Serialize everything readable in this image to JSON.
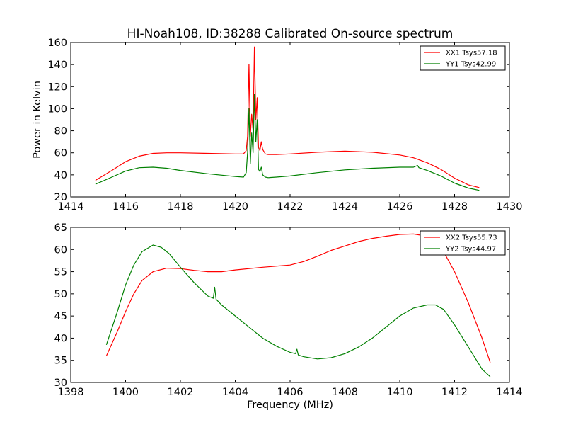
{
  "figure": {
    "title": "HI-Noah108, ID:38288 Calibrated On-source spectrum",
    "xlabel": "Frequency (MHz)"
  },
  "chart_data": [
    {
      "type": "line",
      "title": "HI-Noah108, ID:38288 Calibrated On-source spectrum",
      "xlabel": "",
      "ylabel": "Power in Kelvin",
      "xlim": [
        1414,
        1430
      ],
      "ylim": [
        20,
        160
      ],
      "xticks": [
        "1414",
        "1416",
        "1418",
        "1420",
        "1422",
        "1424",
        "1426",
        "1428",
        "1430"
      ],
      "yticks": [
        "20",
        "40",
        "60",
        "80",
        "100",
        "120",
        "140",
        "160"
      ],
      "legend_position": "top-right",
      "grid": false,
      "series": [
        {
          "name": "XX1 Tsys57.18",
          "color": "#ff0000",
          "x": [
            1414.9,
            1415.5,
            1416.0,
            1416.5,
            1417.0,
            1417.5,
            1418.0,
            1419.0,
            1420.0,
            1420.3,
            1420.4,
            1420.45,
            1420.5,
            1420.55,
            1420.6,
            1420.65,
            1420.7,
            1420.75,
            1420.8,
            1420.85,
            1420.9,
            1420.95,
            1421.0,
            1421.1,
            1421.2,
            1421.5,
            1422.0,
            1423.0,
            1424.0,
            1425.0,
            1426.0,
            1426.5,
            1427.0,
            1427.5,
            1428.0,
            1428.5,
            1428.9
          ],
          "y": [
            35,
            44,
            52,
            57,
            59.5,
            60,
            60,
            59.5,
            59,
            59,
            62,
            75,
            140,
            75,
            95,
            80,
            156,
            90,
            110,
            65,
            62,
            70,
            63,
            59,
            58.5,
            58.5,
            59,
            60.5,
            61.5,
            60.5,
            58,
            55.5,
            51,
            45,
            37,
            31,
            28.5
          ]
        },
        {
          "name": "YY1 Tsys42.99",
          "color": "#008000",
          "x": [
            1414.9,
            1415.5,
            1416.0,
            1416.5,
            1417.0,
            1417.5,
            1418.0,
            1419.0,
            1420.0,
            1420.3,
            1420.4,
            1420.45,
            1420.5,
            1420.55,
            1420.6,
            1420.65,
            1420.7,
            1420.75,
            1420.8,
            1420.85,
            1420.9,
            1420.95,
            1421.0,
            1421.1,
            1421.2,
            1421.5,
            1422.0,
            1423.0,
            1424.0,
            1425.0,
            1426.0,
            1426.5,
            1426.65,
            1426.7,
            1427.0,
            1427.5,
            1428.0,
            1428.5,
            1428.9
          ],
          "y": [
            31.5,
            38,
            43.5,
            46.5,
            47,
            46,
            44,
            41,
            38.5,
            38,
            42,
            60,
            100,
            50,
            78,
            60,
            113,
            70,
            90,
            45,
            43,
            47,
            40,
            38,
            37.5,
            38,
            39,
            42,
            44.5,
            46,
            47,
            47,
            48.5,
            46.5,
            44,
            39,
            32.5,
            28,
            26
          ]
        }
      ]
    },
    {
      "type": "line",
      "title": "",
      "xlabel": "Frequency (MHz)",
      "ylabel": "",
      "xlim": [
        1398,
        1414
      ],
      "ylim": [
        30,
        65
      ],
      "xticks": [
        "1398",
        "1400",
        "1402",
        "1404",
        "1406",
        "1408",
        "1410",
        "1412",
        "1414"
      ],
      "yticks": [
        "30",
        "35",
        "40",
        "45",
        "50",
        "55",
        "60",
        "65"
      ],
      "legend_position": "top-right",
      "grid": false,
      "series": [
        {
          "name": "XX2 Tsys55.73",
          "color": "#ff0000",
          "x": [
            1399.3,
            1399.7,
            1400.0,
            1400.3,
            1400.6,
            1401.0,
            1401.5,
            1402.0,
            1402.5,
            1403.0,
            1403.5,
            1404.0,
            1405.0,
            1406.0,
            1406.5,
            1407.0,
            1407.5,
            1408.0,
            1408.5,
            1409.0,
            1409.5,
            1410.0,
            1410.5,
            1411.0,
            1411.3,
            1411.6,
            1412.0,
            1412.5,
            1413.0,
            1413.3
          ],
          "y": [
            36,
            41.5,
            46,
            50,
            53,
            55,
            55.8,
            55.7,
            55.3,
            55,
            55,
            55.4,
            56,
            56.5,
            57.3,
            58.5,
            59.8,
            60.8,
            61.8,
            62.5,
            63,
            63.4,
            63.5,
            63,
            62,
            59.5,
            55,
            48,
            40,
            34.5
          ]
        },
        {
          "name": "YY2 Tsys44.97",
          "color": "#008000",
          "x": [
            1399.3,
            1399.7,
            1400.0,
            1400.3,
            1400.6,
            1401.0,
            1401.3,
            1401.6,
            1402.0,
            1402.5,
            1403.0,
            1403.2,
            1403.25,
            1403.3,
            1403.5,
            1404.0,
            1404.5,
            1405.0,
            1405.5,
            1406.0,
            1406.2,
            1406.25,
            1406.3,
            1406.5,
            1407.0,
            1407.5,
            1408.0,
            1408.5,
            1409.0,
            1409.5,
            1410.0,
            1410.5,
            1411.0,
            1411.3,
            1411.6,
            1412.0,
            1412.5,
            1413.0,
            1413.3
          ],
          "y": [
            38.5,
            46,
            52,
            56.5,
            59.5,
            61,
            60.5,
            59,
            56,
            52.5,
            49.5,
            49,
            51.5,
            48.8,
            47.5,
            45,
            42.5,
            40,
            38.2,
            36.8,
            36.5,
            37.5,
            36.2,
            35.8,
            35.3,
            35.6,
            36.5,
            38,
            40,
            42.5,
            45,
            46.8,
            47.5,
            47.5,
            46.5,
            43,
            38,
            33,
            31.3
          ]
        }
      ]
    }
  ]
}
